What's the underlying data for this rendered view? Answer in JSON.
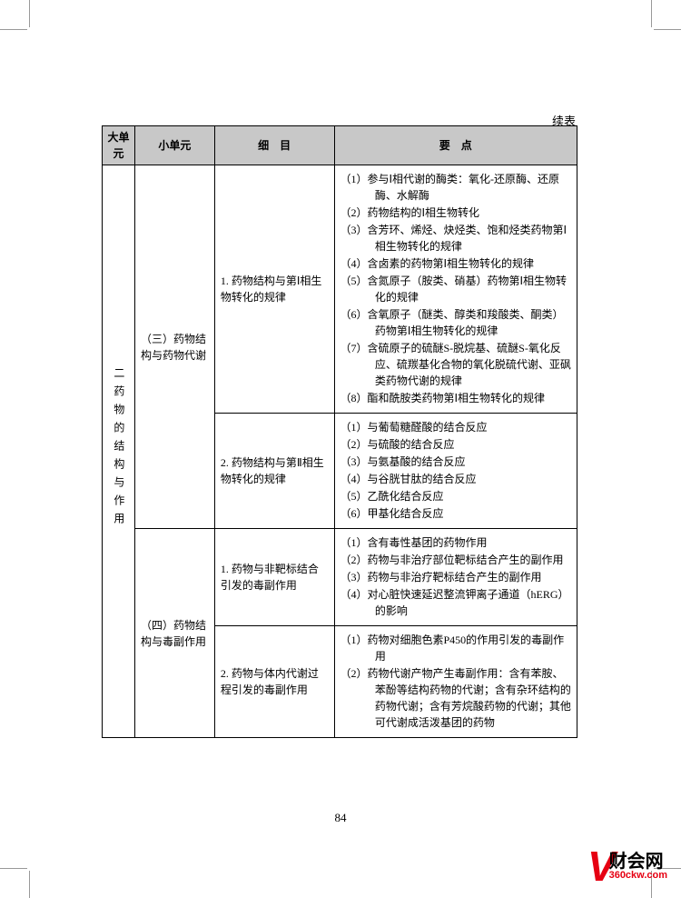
{
  "continued_label": "续表",
  "headers": {
    "major": "大单元",
    "minor": "小单元",
    "detail": "细　目",
    "points": "要　点"
  },
  "major_unit": "二药物的结构与作用",
  "section3": {
    "title": "（三）药物结构与药物代谢",
    "row1": {
      "detail": "1. 药物结构与第Ⅰ相生物转化的规律",
      "points": [
        "（1）参与Ⅰ相代谢的酶类：氧化-还原酶、还原酶、水解酶",
        "（2）药物结构的Ⅰ相生物转化",
        "（3）含芳环、烯烃、炔烃类、饱和烃类药物第Ⅰ相生物转化的规律",
        "（4）含卤素的药物第Ⅰ相生物转化的规律",
        "（5）含氮原子（胺类、硝基）药物第Ⅰ相生物转化的规律",
        "（6）含氧原子（醚类、醇类和羧酸类、酮类）药物第Ⅰ相生物转化的规律",
        "（7）含硫原子的硫醚S-脱烷基、硫醚S-氧化反应、硫羰基化合物的氧化脱硫代谢、亚砜类药物代谢的规律",
        "（8）酯和酰胺类药物第Ⅰ相生物转化的规律"
      ]
    },
    "row2": {
      "detail": "2. 药物结构与第Ⅱ相生物转化的规律",
      "points": [
        "（1）与葡萄糖醛酸的结合反应",
        "（2）与硫酸的结合反应",
        "（3）与氨基酸的结合反应",
        "（4）与谷胱甘肽的结合反应",
        "（5）乙酰化结合反应",
        "（6）甲基化结合反应"
      ]
    }
  },
  "section4": {
    "title": "（四）药物结构与毒副作用",
    "row1": {
      "detail": "1. 药物与非靶标结合引发的毒副作用",
      "points": [
        "（1）含有毒性基团的药物作用",
        "（2）药物与非治疗部位靶标结合产生的副作用",
        "（3）药物与非治疗靶标结合产生的副作用",
        "（4）对心脏快速延迟整流钾离子通道（hERG）的影响"
      ]
    },
    "row2": {
      "detail": "2. 药物与体内代谢过程引发的毒副作用",
      "points": [
        "（1）药物对细胞色素P450的作用引发的毒副作用",
        "（2）药物代谢产物产生毒副作用：含有苯胺、苯酚等结构药物的代谢；含有杂环结构的药物代谢；含有芳烷酸药物的代谢；其他可代谢成活泼基团的药物"
      ]
    }
  },
  "page_number": "84",
  "logo": {
    "cn": "财会网",
    "url": "360ckw.com"
  }
}
